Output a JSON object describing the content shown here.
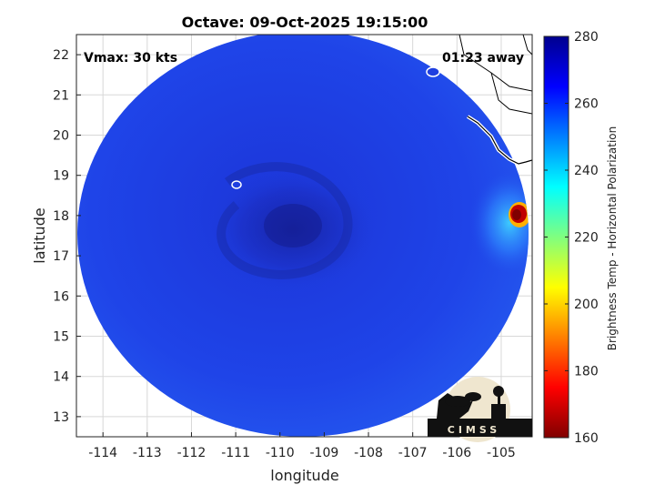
{
  "chart_data": {
    "type": "heatmap",
    "title": "Octave: 09-Oct-2025 19:15:00",
    "xlabel": "longitude",
    "ylabel": "latitude",
    "xlim": [
      -114.6,
      -104.3
    ],
    "ylim": [
      12.5,
      22.5
    ],
    "x_ticks": [
      -114,
      -113,
      -112,
      -111,
      -110,
      -109,
      -108,
      -107,
      -106,
      -105
    ],
    "y_ticks": [
      13,
      14,
      15,
      16,
      17,
      18,
      19,
      20,
      21,
      22
    ],
    "grid": true,
    "colorbar": {
      "label": "Brightness Temp - Horizontal Polarization",
      "range": [
        160,
        280
      ],
      "ticks": [
        160,
        180,
        200,
        220,
        240,
        260,
        280
      ],
      "colormap": "jet"
    },
    "annotations": {
      "vmax": "Vmax: 30 kts",
      "time_away": "01:23 away",
      "logo": "CIMSS"
    },
    "swath": {
      "center": [
        -109.6,
        17.5
      ],
      "background_temp": 265,
      "storm_center": [
        -109.7,
        17.8
      ],
      "coldest_spot": [
        -104.5,
        18.0
      ],
      "coldest_temp": 170
    }
  },
  "colors": {
    "swath_blue": "#1f3fe0",
    "deep_blue": "#1a2ab8",
    "land_outline": "#ffffff",
    "coast_line": "#000000"
  }
}
